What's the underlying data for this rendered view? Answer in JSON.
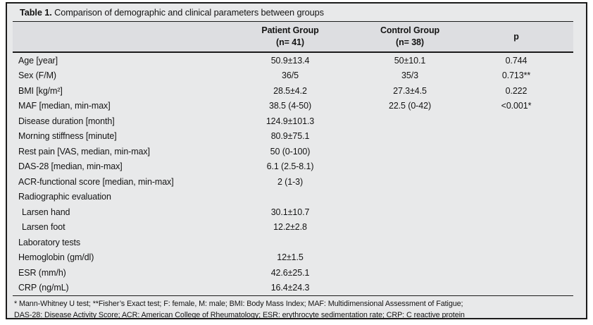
{
  "colors": {
    "page_bg": "#ffffff",
    "table_bg": "#e8e9ea",
    "header_band_bg": "#dddee1",
    "rule": "#1b1b1b",
    "text": "#141414"
  },
  "table": {
    "title_label": "Table 1.",
    "title_text": " Comparison of demographic and clinical parameters between groups",
    "header": {
      "parameter": "",
      "patient_line1": "Patient Group",
      "patient_line2": "(n= 41)",
      "control_line1": "Control Group",
      "control_line2": "(n= 38)",
      "p": "p"
    },
    "rows": [
      {
        "label": "Age [year]",
        "patient": "50.9±13.4",
        "control": "50±10.1",
        "p": "0.744"
      },
      {
        "label": "Sex (F/M)",
        "patient": "36/5",
        "control": "35/3",
        "p": "0.713**"
      },
      {
        "label": "BMI [kg/m²]",
        "patient": "28.5±4.2",
        "control": "27.3±4.5",
        "p": "0.222"
      },
      {
        "label": "MAF [median, min-max]",
        "patient": "38.5 (4-50)",
        "control": "22.5 (0-42)",
        "p": "<0.001*"
      },
      {
        "label": "Disease duration [month]",
        "patient": "124.9±101.3",
        "control": "",
        "p": ""
      },
      {
        "label": "Morning stiffness [minute]",
        "patient": "80.9±75.1",
        "control": "",
        "p": ""
      },
      {
        "label": "Rest pain [VAS, median, min-max]",
        "patient": "50 (0-100)",
        "control": "",
        "p": ""
      },
      {
        "label": "DAS-28 [median, min-max]",
        "patient": "6.1 (2.5-8.1)",
        "control": "",
        "p": ""
      },
      {
        "label": "ACR-functional score [median, min-max]",
        "patient": "2 (1-3)",
        "control": "",
        "p": ""
      },
      {
        "label": "Radiographic evaluation",
        "patient": "",
        "control": "",
        "p": "",
        "section": true
      },
      {
        "label": "Larsen hand",
        "patient": "30.1±10.7",
        "control": "",
        "p": "",
        "indent": true
      },
      {
        "label": "Larsen foot",
        "patient": "12.2±2.8",
        "control": "",
        "p": "",
        "indent": true
      },
      {
        "label": "Laboratory tests",
        "patient": "",
        "control": "",
        "p": "",
        "section": true
      },
      {
        "label": "Hemoglobin (gm/dl)",
        "patient": "12±1.5",
        "control": "",
        "p": ""
      },
      {
        "label": "ESR (mm/h)",
        "patient": "42.6±25.1",
        "control": "",
        "p": ""
      },
      {
        "label": "CRP (ng/mL)",
        "patient": "16.4±24.3",
        "control": "",
        "p": ""
      }
    ],
    "footnotes": [
      "* Mann-Whitney U test; **Fisher’s Exact test; F: female, M: male; BMI: Body Mass Index; MAF: Multidimensional Assessment of Fatigue;",
      "DAS-28: Disease Activity Score; ACR: American College of Rheumatology; ESR: erythrocyte sedimentation rate; CRP: C reactive protein"
    ]
  }
}
